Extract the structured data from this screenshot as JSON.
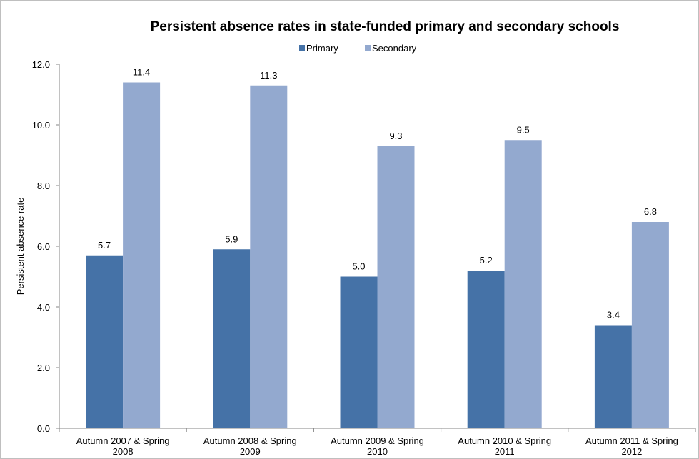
{
  "chart_data": {
    "type": "bar",
    "title": "Persistent absence rates in state-funded primary and secondary schools",
    "ylabel": "Persistent absence rate",
    "xlabel": "",
    "ylim": [
      0,
      12
    ],
    "yticks": [
      "0.0",
      "2.0",
      "4.0",
      "6.0",
      "8.0",
      "10.0",
      "12.0"
    ],
    "legend_position": "top",
    "gridlines": false,
    "categories": [
      [
        "Autumn 2007 & Spring",
        "2008"
      ],
      [
        "Autumn 2008 & Spring",
        "2009"
      ],
      [
        "Autumn 2009 & Spring",
        "2010"
      ],
      [
        "Autumn 2010 & Spring",
        "2011"
      ],
      [
        "Autumn 2011 & Spring",
        "2012"
      ]
    ],
    "series": [
      {
        "name": "Primary",
        "color": "#4572A7",
        "values": [
          5.7,
          5.9,
          5.0,
          5.2,
          3.4
        ],
        "labels": [
          "5.7",
          "5.9",
          "5.0",
          "5.2",
          "3.4"
        ]
      },
      {
        "name": "Secondary",
        "color": "#93A9CF",
        "values": [
          11.4,
          11.3,
          9.3,
          9.5,
          6.8
        ],
        "labels": [
          "11.4",
          "11.3",
          "9.3",
          "9.5",
          "6.8"
        ]
      }
    ]
  }
}
